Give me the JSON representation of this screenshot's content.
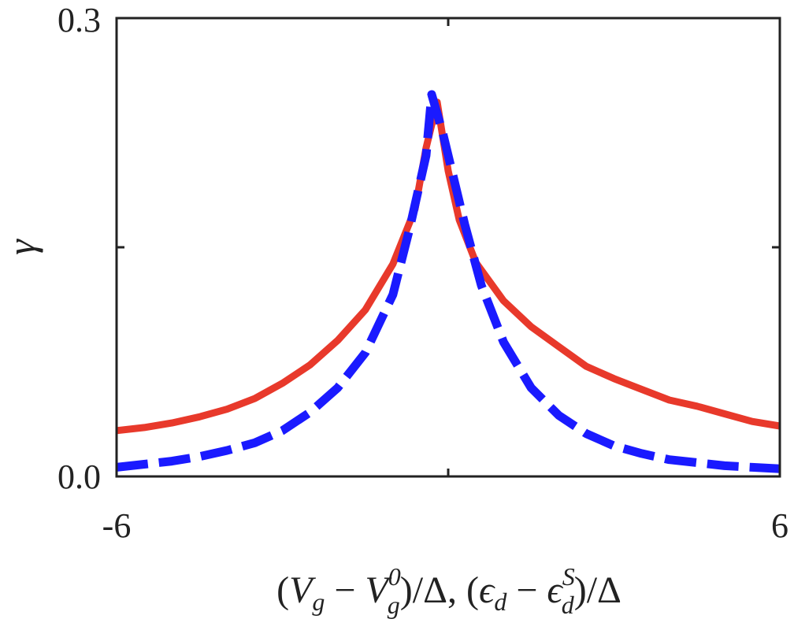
{
  "chart_data": {
    "type": "line",
    "xlabel_parts": {
      "open1": "(",
      "V1": "V",
      "g1": "g",
      "minus1": " − ",
      "V2": "V",
      "g2": "g",
      "zero": "0",
      "close1": ")/Δ, (",
      "eps1": "ϵ",
      "d1": "d",
      "minus2": " − ",
      "eps2": "ϵ",
      "d2": "d",
      "S": "S",
      "close2": ")/Δ"
    },
    "ylabel": "γ",
    "xlim": [
      -6,
      6
    ],
    "ylim": [
      0,
      0.3
    ],
    "xtick_labels": [
      "-6",
      "6"
    ],
    "ytick_labels": [
      "0.0",
      "0.3"
    ],
    "x_minor_ticks": [
      0
    ],
    "y_minor_ticks": [
      0.15
    ],
    "grid": false,
    "series": [
      {
        "style": "solid",
        "color": "#e8392b",
        "x": [
          -6.0,
          -5.5,
          -5.0,
          -4.5,
          -4.0,
          -3.5,
          -3.0,
          -2.5,
          -2.0,
          -1.5,
          -1.0,
          -0.6,
          -0.4,
          -0.2,
          0.0,
          0.2,
          0.5,
          1.0,
          1.5,
          2.0,
          2.5,
          3.0,
          3.5,
          4.0,
          4.5,
          5.0,
          5.5,
          6.0
        ],
        "y": [
          0.03,
          0.032,
          0.035,
          0.039,
          0.044,
          0.051,
          0.061,
          0.073,
          0.089,
          0.109,
          0.139,
          0.175,
          0.215,
          0.245,
          0.2,
          0.168,
          0.14,
          0.115,
          0.098,
          0.085,
          0.072,
          0.064,
          0.057,
          0.05,
          0.046,
          0.041,
          0.036,
          0.033
        ]
      },
      {
        "style": "dashed",
        "color": "#1a1aff",
        "x": [
          -6.0,
          -5.5,
          -5.0,
          -4.5,
          -4.0,
          -3.5,
          -3.0,
          -2.5,
          -2.0,
          -1.5,
          -1.0,
          -0.7,
          -0.4,
          -0.3,
          -0.1,
          0.3,
          0.6,
          1.0,
          1.5,
          2.0,
          2.5,
          3.0,
          3.5,
          4.0,
          4.5,
          5.0,
          5.5,
          6.0
        ],
        "y": [
          0.006,
          0.008,
          0.01,
          0.013,
          0.017,
          0.022,
          0.03,
          0.042,
          0.058,
          0.081,
          0.119,
          0.162,
          0.21,
          0.25,
          0.225,
          0.165,
          0.125,
          0.088,
          0.058,
          0.04,
          0.028,
          0.02,
          0.015,
          0.011,
          0.009,
          0.007,
          0.006,
          0.005
        ]
      }
    ]
  }
}
